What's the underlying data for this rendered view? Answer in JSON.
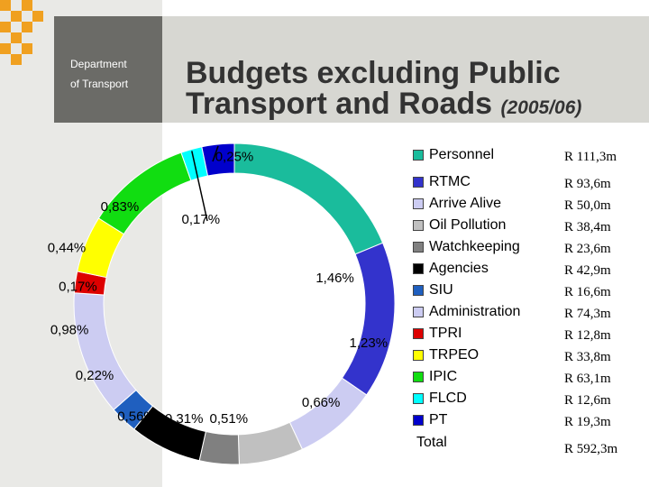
{
  "header": {
    "dept_line1": "Department",
    "dept_line2": "of Transport",
    "title_main": "Budgets excluding Public Transport and Roads",
    "title_year": "(2005/06)"
  },
  "colors": {
    "squares": "#f0a020",
    "background_band": "#e9e9e6",
    "header_band": "#d7d7d2",
    "dept_box": "#6b6b67"
  },
  "chart_data": {
    "type": "pie",
    "title": "Budgets excluding Public Transport and Roads (2005/06)",
    "series": [
      {
        "name": "Personnel",
        "amount": "R 111,3m",
        "value": 111.3,
        "color": "#1abc9c"
      },
      {
        "name": "RTMC",
        "amount": "R 93,6m",
        "value": 93.6,
        "color": "#3333cc"
      },
      {
        "name": "Arrive Alive",
        "amount": "R 50,0m",
        "value": 50.0,
        "color": "#ccccf2"
      },
      {
        "name": "Oil Pollution",
        "amount": "R 38,4m",
        "value": 38.4,
        "color": "#c0c0c0"
      },
      {
        "name": "Watchkeeping",
        "amount": "R 23,6m",
        "value": 23.6,
        "color": "#808080"
      },
      {
        "name": "Agencies",
        "amount": "R 42,9m",
        "value": 42.9,
        "color": "#000000"
      },
      {
        "name": "SIU",
        "amount": "R 16,6m",
        "value": 16.6,
        "color": "#1f5fbf"
      },
      {
        "name": "Administration",
        "amount": "R 74,3m",
        "value": 74.3,
        "color": "#ccccf2"
      },
      {
        "name": "TPRI",
        "amount": "R 12,8m",
        "value": 12.8,
        "color": "#dd0000"
      },
      {
        "name": "TRPEO",
        "amount": "R 33,8m",
        "value": 33.8,
        "color": "#ffff00"
      },
      {
        "name": "IPIC",
        "amount": "R 63,1m",
        "value": 63.1,
        "color": "#11dd11"
      },
      {
        "name": "FLCD",
        "amount": "R 12,6m",
        "value": 12.6,
        "color": "#00ffff"
      },
      {
        "name": "PT",
        "amount": "R 19,3m",
        "value": 19.3,
        "color": "#0000cc"
      }
    ],
    "total": {
      "name": "Total",
      "amount": "R 592,3m"
    },
    "data_labels": [
      "0,25%",
      "1,46%",
      "1,23%",
      "0,66%",
      "0,51%",
      "0,31%",
      "0,56%",
      "0,22%",
      "0,98%",
      "0,17%",
      "0,44%",
      "0,83%",
      "0,17%"
    ],
    "legend_position": "right"
  }
}
